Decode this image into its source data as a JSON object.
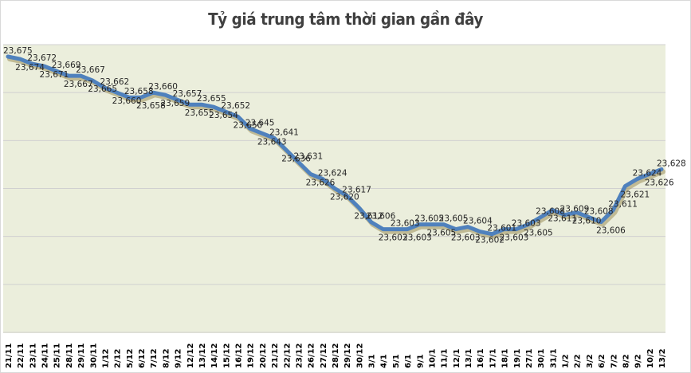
{
  "title": "Tỷ giá trung tâm thời gian gần đây",
  "colors": {
    "line": "#4f81bd",
    "plot_bg": "#ebeedc",
    "grid": "#d0d0d0",
    "shadow": "#9c8f5a"
  },
  "chart_data": {
    "type": "line",
    "title": "Tỷ giá trung tâm thời gian gần đây",
    "xlabel": "",
    "ylabel": "",
    "ylim": [
      23560,
      23680
    ],
    "grid": true,
    "legend": "none",
    "categories": [
      "21/11",
      "22/11",
      "23/11",
      "24/11",
      "25/11",
      "28/11",
      "29/11",
      "30/11",
      "1/12",
      "2/12",
      "5/12",
      "6/12",
      "7/12",
      "8/12",
      "9/12",
      "12/12",
      "13/12",
      "14/12",
      "15/12",
      "16/12",
      "19/12",
      "20/12",
      "21/12",
      "22/12",
      "23/12",
      "26/12",
      "27/12",
      "28/12",
      "29/12",
      "30/12",
      "3/1",
      "4/1",
      "5/1",
      "6/1",
      "9/1",
      "10/1",
      "11/1",
      "12/1",
      "13/1",
      "16/1",
      "17/1",
      "18/1",
      "19/1",
      "27/1",
      "30/1",
      "31/1",
      "1/2",
      "2/2",
      "3/2",
      "6/2",
      "7/2",
      "8/2",
      "9/2",
      "10/2",
      "13/2"
    ],
    "series": [
      {
        "name": "Tỷ giá trung tâm",
        "values": [
          23675,
          23674,
          23672,
          23671,
          23669,
          23667,
          23667,
          23665,
          23662,
          23660,
          23658,
          23658,
          23660,
          23659,
          23657,
          23655,
          23655,
          23654,
          23652,
          23650,
          23645,
          23643,
          23641,
          23636,
          23631,
          23626,
          23624,
          23620,
          23617,
          23612,
          23606,
          23603,
          23603,
          23603,
          23605,
          23605,
          23605,
          23603,
          23604,
          23602,
          23601,
          23603,
          23603,
          23605,
          23608,
          23611,
          23609,
          23610,
          23608,
          23606,
          23611,
          23621,
          23624,
          23626,
          23628
        ]
      }
    ]
  }
}
